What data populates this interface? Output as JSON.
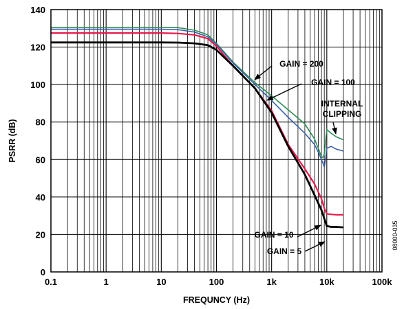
{
  "chart_data": {
    "type": "line",
    "title": "",
    "xlabel": "FREQUNCY (Hz)",
    "ylabel": "PSRR (dB)",
    "xscale": "log",
    "xlim": [
      0.1,
      100000
    ],
    "ylim": [
      0,
      140
    ],
    "grid": true,
    "x_tick_labels": [
      "0.1",
      "1",
      "10",
      "100",
      "1k",
      "10k",
      "100k"
    ],
    "y_tick_labels": [
      "0",
      "20",
      "40",
      "60",
      "80",
      "100",
      "120",
      "140"
    ],
    "series": [
      {
        "name": "GAIN = 200",
        "color": "#2e8b57",
        "points": [
          [
            0.1,
            130.5
          ],
          [
            1,
            130.5
          ],
          [
            10,
            130.5
          ],
          [
            20,
            130.4
          ],
          [
            40,
            129
          ],
          [
            70,
            126.5
          ],
          [
            100,
            122
          ],
          [
            200,
            112
          ],
          [
            500,
            101
          ],
          [
            1000,
            94
          ],
          [
            2000,
            86.5
          ],
          [
            4000,
            79
          ],
          [
            6000,
            71
          ],
          [
            7000,
            66
          ],
          [
            8000,
            61.5
          ],
          [
            8500,
            61
          ],
          [
            9000,
            63
          ],
          [
            10000,
            76
          ],
          [
            12000,
            74
          ],
          [
            15000,
            72
          ],
          [
            20000,
            70.5
          ]
        ]
      },
      {
        "name": "GAIN = 100",
        "color": "#3a5fa8",
        "points": [
          [
            0.1,
            129.5
          ],
          [
            1,
            129.5
          ],
          [
            10,
            129.5
          ],
          [
            20,
            129.3
          ],
          [
            40,
            128
          ],
          [
            70,
            125.5
          ],
          [
            100,
            121.5
          ],
          [
            200,
            111.5
          ],
          [
            500,
            100
          ],
          [
            1000,
            91.5
          ],
          [
            2000,
            82.5
          ],
          [
            4000,
            74
          ],
          [
            6000,
            68
          ],
          [
            7000,
            64
          ],
          [
            8000,
            60
          ],
          [
            8500,
            58
          ],
          [
            9000,
            56
          ],
          [
            9500,
            60
          ],
          [
            10000,
            66
          ],
          [
            12000,
            67
          ],
          [
            15000,
            65.5
          ],
          [
            20000,
            64.5
          ]
        ]
      },
      {
        "name": "GAIN = 10",
        "color": "#e8194b",
        "points": [
          [
            0.1,
            127.5
          ],
          [
            1,
            127.5
          ],
          [
            10,
            127.5
          ],
          [
            20,
            127.3
          ],
          [
            40,
            126.5
          ],
          [
            70,
            124.5
          ],
          [
            100,
            120.5
          ],
          [
            200,
            110
          ],
          [
            500,
            98
          ],
          [
            1000,
            86
          ],
          [
            2000,
            68
          ],
          [
            4000,
            55
          ],
          [
            6000,
            47
          ],
          [
            8000,
            39
          ],
          [
            9000,
            34
          ],
          [
            10000,
            31
          ],
          [
            12000,
            30.7
          ],
          [
            15000,
            30.5
          ],
          [
            20000,
            30.5
          ]
        ]
      },
      {
        "name": "GAIN = 5",
        "color": "#000000",
        "points": [
          [
            0.1,
            122.5
          ],
          [
            1,
            122.5
          ],
          [
            10,
            122.5
          ],
          [
            20,
            122.4
          ],
          [
            40,
            122
          ],
          [
            70,
            121
          ],
          [
            100,
            118.5
          ],
          [
            200,
            110
          ],
          [
            500,
            98
          ],
          [
            1000,
            85
          ],
          [
            2000,
            67
          ],
          [
            4000,
            52
          ],
          [
            6000,
            41
          ],
          [
            8000,
            33
          ],
          [
            9000,
            28.5
          ],
          [
            10000,
            24.5
          ],
          [
            12000,
            24
          ],
          [
            15000,
            24
          ],
          [
            20000,
            23.8
          ]
        ]
      }
    ],
    "annotations": [
      {
        "id": "gain200",
        "lines": [
          "GAIN = 200"
        ]
      },
      {
        "id": "gain100",
        "lines": [
          "GAIN = 100"
        ]
      },
      {
        "id": "clip",
        "lines": [
          "INTERNAL",
          "CLIPPING"
        ]
      },
      {
        "id": "gain10",
        "lines": [
          "GAIN = 10"
        ]
      },
      {
        "id": "gain5",
        "lines": [
          "GAIN = 5"
        ]
      }
    ],
    "figure_id": "08000-035"
  }
}
